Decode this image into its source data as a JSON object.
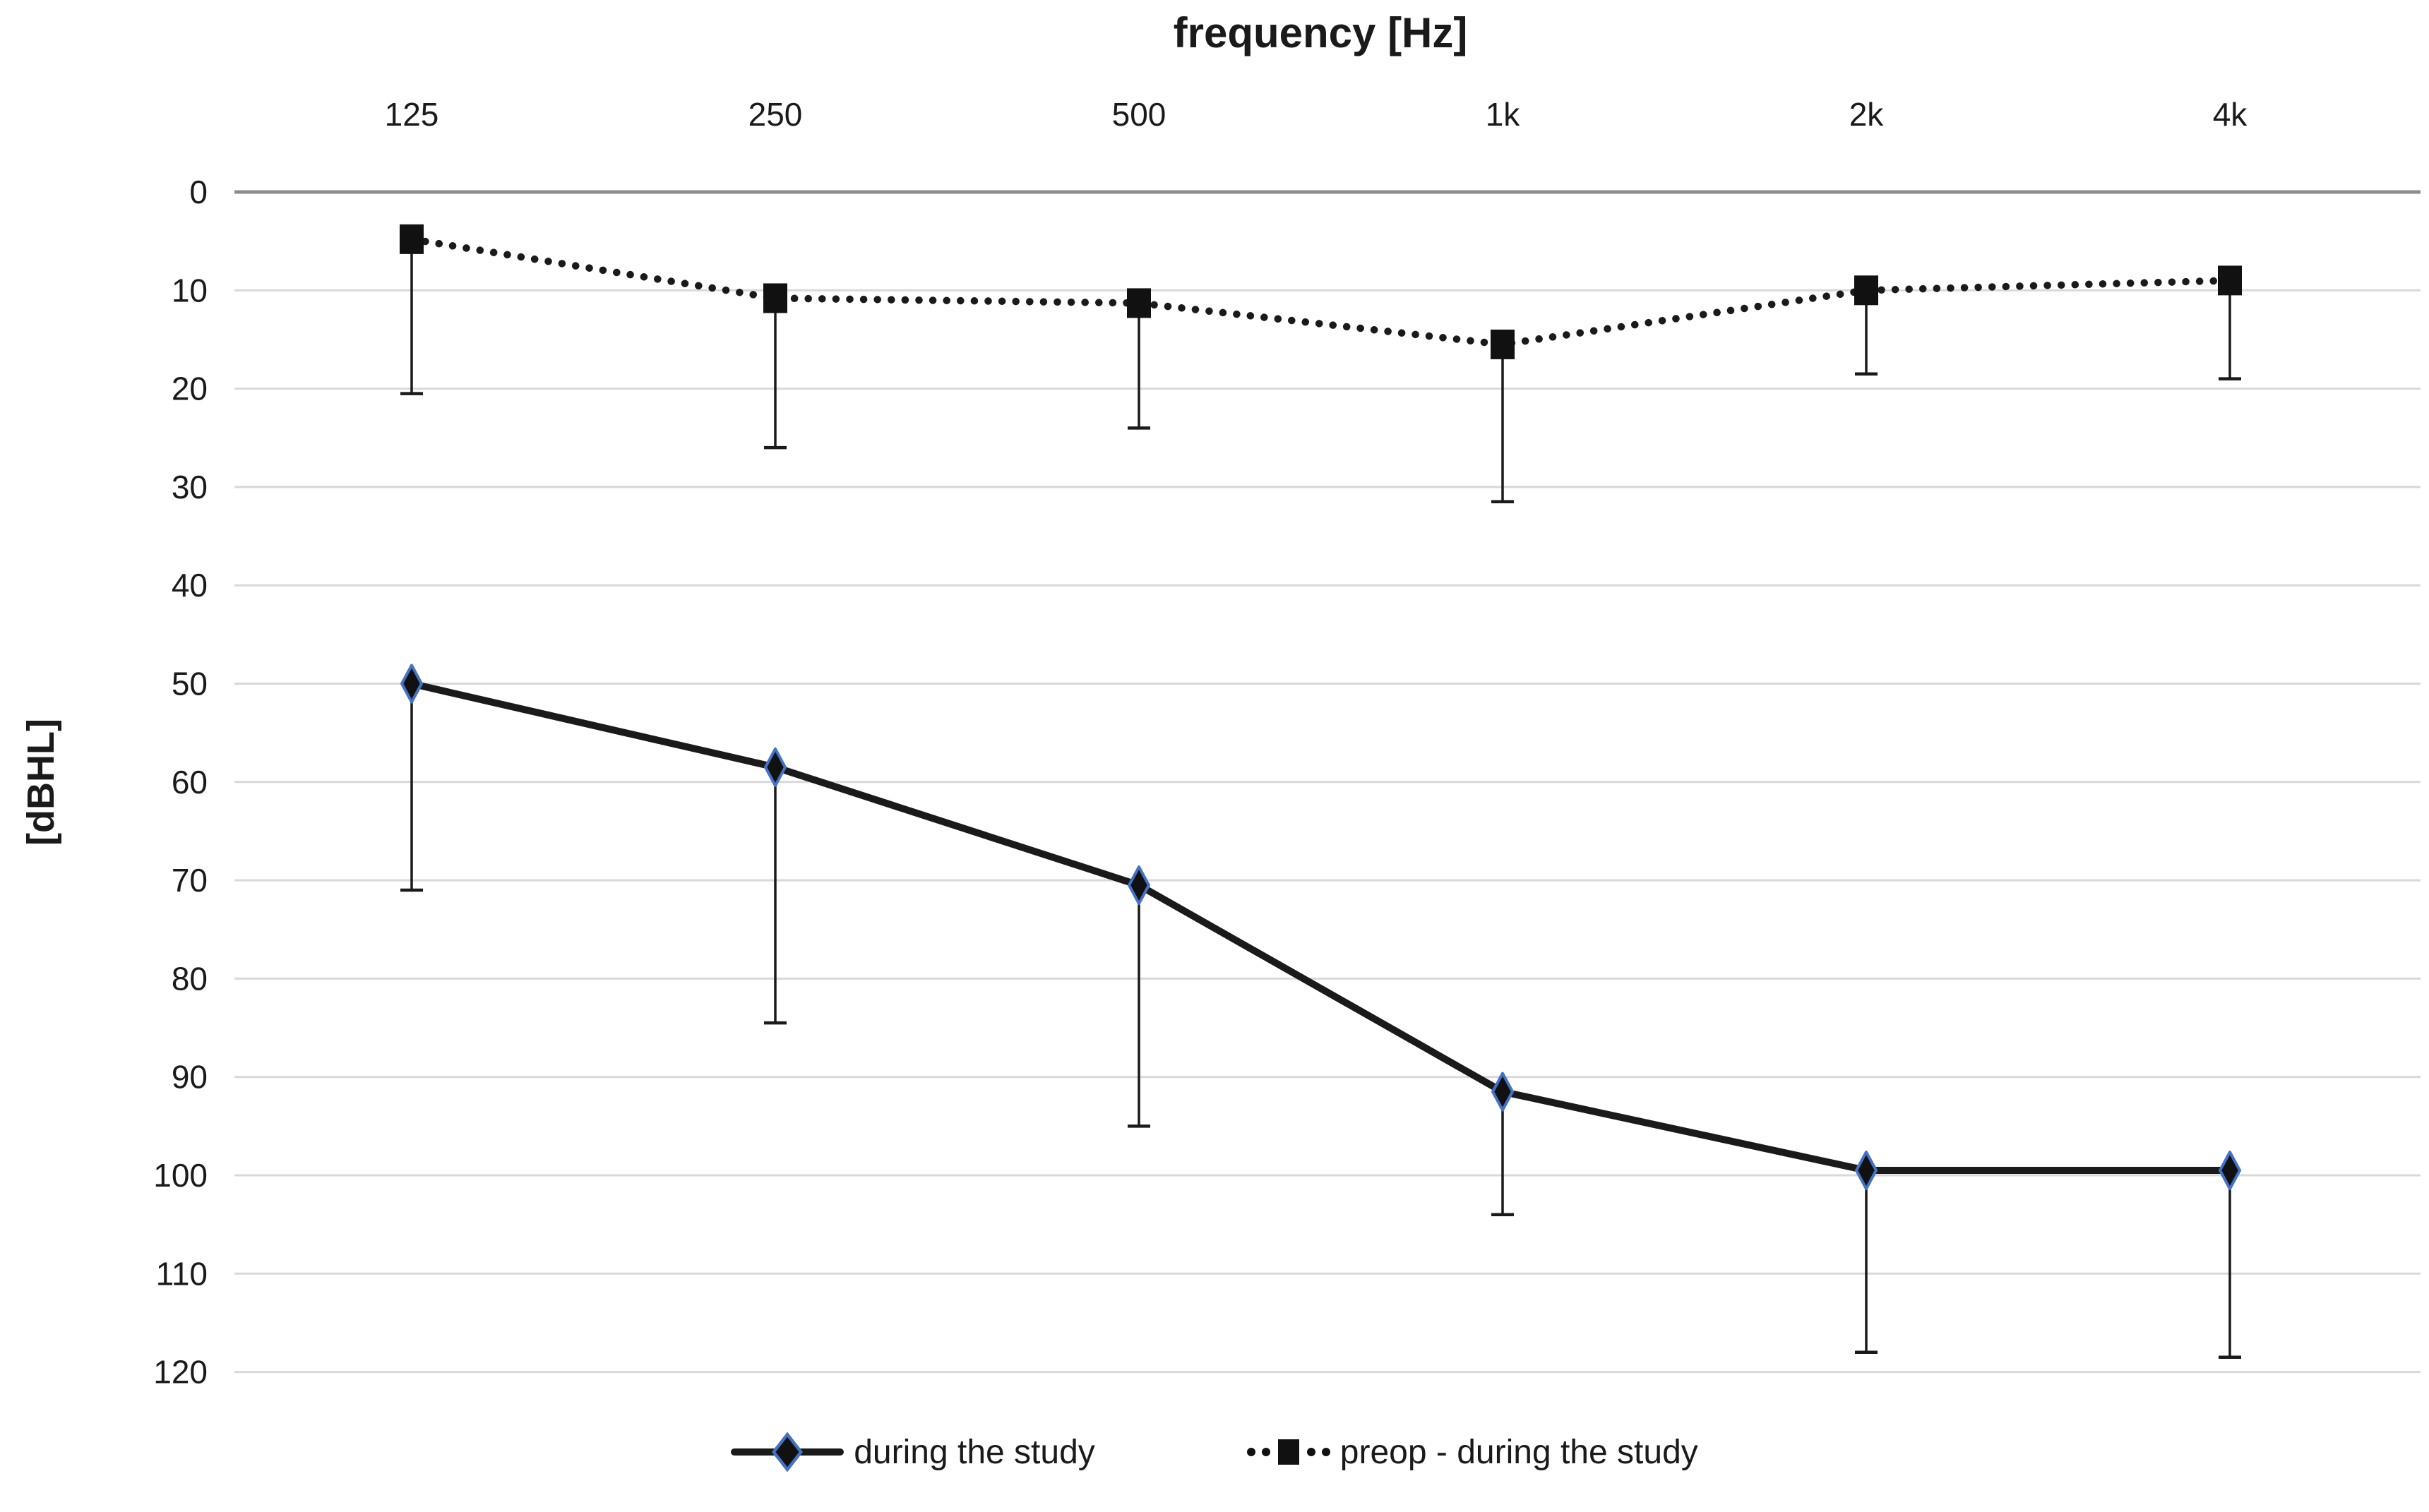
{
  "title": "frequency [Hz]",
  "y_axis_label": "[dBHL]",
  "colors": {
    "series": "#1a1a1a",
    "diamond_outline": "#4472c4",
    "gridline": "#d9d9d9",
    "axis_line": "#8c8c8c",
    "text": "#1a1a1a"
  },
  "legend": {
    "items": [
      {
        "label": "during the study",
        "marker": "diamond-on-solid-line"
      },
      {
        "label": "preop - during the study",
        "marker": "square-on-dotted-line"
      }
    ]
  },
  "chart_data": {
    "type": "line",
    "title": "frequency [Hz]",
    "xlabel": "frequency [Hz]",
    "ylabel": "[dBHL]",
    "categories": [
      "125",
      "250",
      "500",
      "1k",
      "2k",
      "4k"
    ],
    "y_ticks": [
      0,
      10,
      20,
      30,
      40,
      50,
      60,
      70,
      80,
      90,
      100,
      110,
      120
    ],
    "ylim": [
      0,
      120
    ],
    "y_axis_inverted": true,
    "grid": "horizontal",
    "legend_position": "bottom",
    "error_bars": "lower-only",
    "series": [
      {
        "name": "during the study",
        "line_style": "solid",
        "marker": "diamond",
        "color": "#1a1a1a",
        "marker_outline": "#4472c4",
        "values": [
          50,
          58.5,
          70.5,
          91.5,
          99.5,
          99.5
        ],
        "error_bar_lower_end": [
          71,
          84.5,
          95,
          104,
          118,
          118.5
        ]
      },
      {
        "name": "preop - during the study",
        "line_style": "dotted",
        "marker": "square",
        "color": "#1a1a1a",
        "values": [
          4.8,
          10.8,
          11.3,
          15.5,
          10,
          9
        ],
        "error_bar_lower_end": [
          20.5,
          26,
          24,
          31.5,
          18.5,
          19
        ]
      }
    ]
  }
}
